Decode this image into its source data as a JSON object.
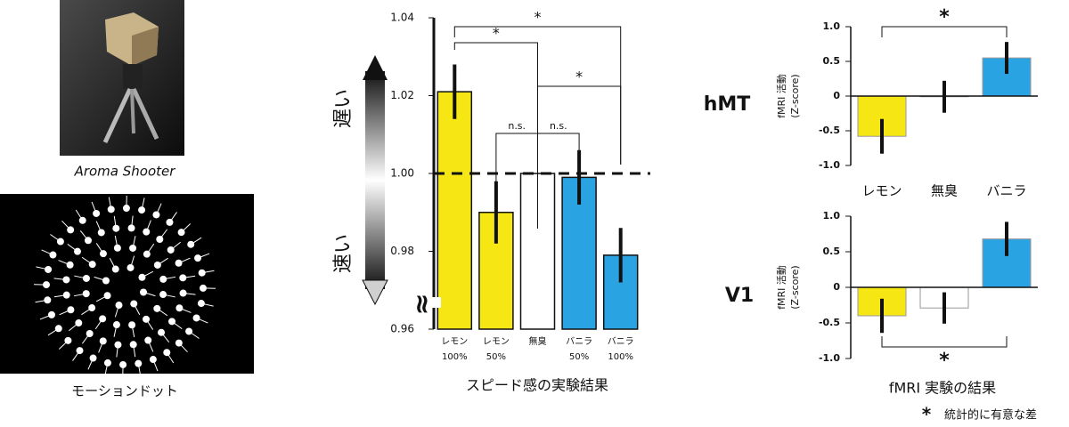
{
  "captions": {
    "photo": "Aroma Shooter",
    "dots": "モーションドット",
    "significance": "統計的に有意な差",
    "significance_mark": "*"
  },
  "chart_data": [
    {
      "type": "bar",
      "xlabel": "スピード感の実験結果",
      "upper_label": "遅い",
      "lower_label": "速い",
      "categories": [
        "レモン",
        "レモン",
        "無臭",
        "バニラ",
        "バニラ"
      ],
      "category_sublabels": [
        "100%",
        "50%",
        null,
        "50%",
        "100%"
      ],
      "values": [
        1.021,
        0.99,
        1.0,
        0.999,
        0.979
      ],
      "errors": [
        0.007,
        0.008,
        null,
        0.007,
        0.007
      ],
      "colors": [
        "#f5e614",
        "#f5e614",
        "#ffffff",
        "#2aa3e3",
        "#2aa3e3"
      ],
      "ylim": [
        0.96,
        1.04
      ],
      "yticks": [
        0.96,
        0.98,
        {
          "value": 1,
          "label": "1.00"
        },
        1.02,
        1.04
      ],
      "reference_line": 1,
      "brackets": [
        {
          "from": 0,
          "to": 4,
          "label": "*"
        },
        {
          "from": 0,
          "to": 2,
          "label": "*"
        },
        {
          "from": 2,
          "to": 4,
          "label": "*"
        },
        {
          "from": 1,
          "to": 2,
          "label": "n.s."
        },
        {
          "from": 2,
          "to": 3,
          "label": "n.s."
        }
      ]
    },
    {
      "type": "bar",
      "region": "hMT",
      "ylabel": "fMRI 活動",
      "ylabel_unit": "(Z-score)",
      "categories": [
        "レモン",
        "無臭",
        "バニラ"
      ],
      "values": [
        -0.58,
        -0.01,
        0.55
      ],
      "errors": [
        0.25,
        0.23,
        0.23
      ],
      "colors": [
        "#f5e614",
        "#ffffff",
        "#2aa3e3"
      ],
      "ylim": [
        -1,
        1
      ],
      "yticks": [
        {
          "value": 1,
          "label": "1.0"
        },
        0.5,
        0,
        -0.5,
        {
          "value": -1,
          "label": "-1.0"
        }
      ],
      "brackets": [
        {
          "from": 0,
          "to": 2,
          "label": "*"
        }
      ]
    },
    {
      "type": "bar",
      "region": "V1",
      "ylabel": "fMRI 活動",
      "ylabel_unit": "(Z-score)",
      "xlabel": "fMRI 実験の結果",
      "categories": [
        null,
        null,
        null
      ],
      "values": [
        -0.4,
        -0.29,
        0.68
      ],
      "errors": [
        0.24,
        0.22,
        0.24
      ],
      "colors": [
        "#f5e614",
        "#ffffff",
        "#2aa3e3"
      ],
      "ylim": [
        -1,
        1
      ],
      "yticks": [
        {
          "value": 1,
          "label": "1.0"
        },
        0.5,
        0,
        -0.5,
        {
          "value": -1,
          "label": "-1.0"
        }
      ],
      "brackets": [
        {
          "from": 0,
          "to": 2,
          "label": "*"
        }
      ]
    }
  ]
}
